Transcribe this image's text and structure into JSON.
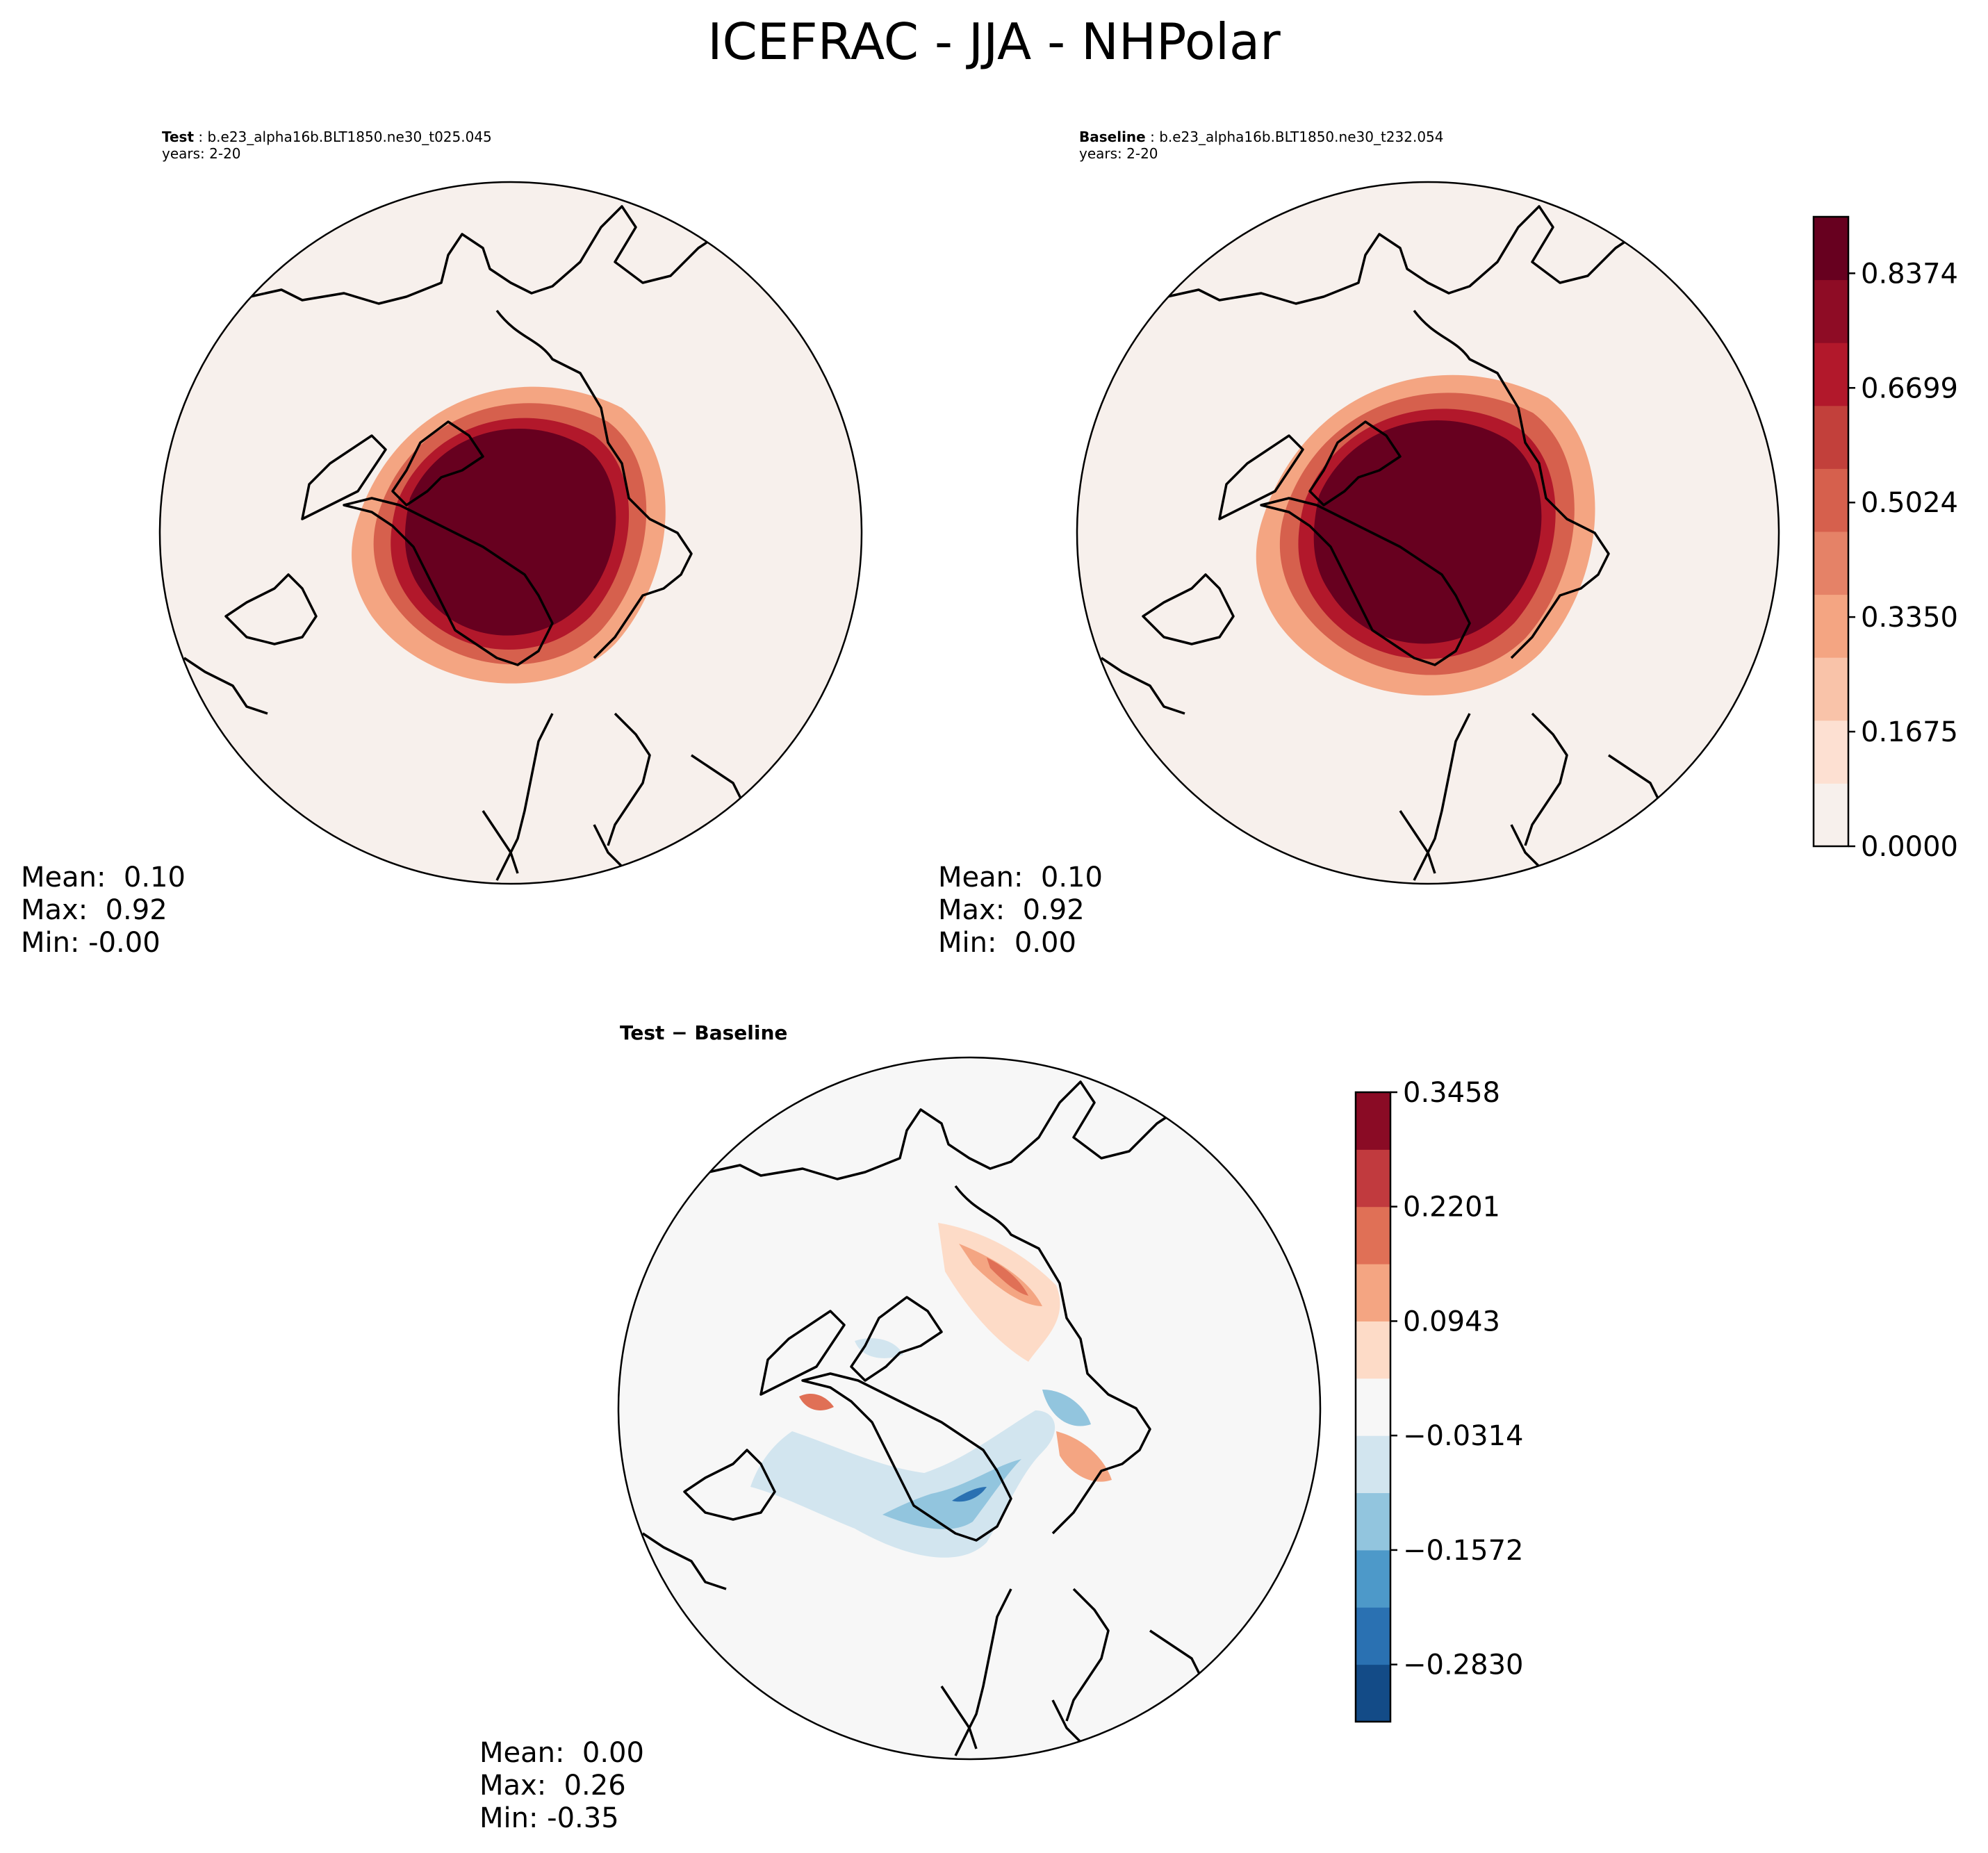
{
  "figure": {
    "title": "ICEFRAC - JJA - NHPolar"
  },
  "panels": {
    "test": {
      "label": "Test",
      "case": "b.e23_alpha16b.BLT1850.ne30_t025.045",
      "years": "years: 2-20",
      "stats": {
        "mean": "Mean:  0.10",
        "max": "Max:  0.92",
        "min": "Min: -0.00"
      }
    },
    "baseline": {
      "label": "Baseline",
      "case": "b.e23_alpha16b.BLT1850.ne30_t232.054",
      "years": "years: 2-20",
      "stats": {
        "mean": "Mean:  0.10",
        "max": "Max:  0.92",
        "min": "Min:  0.00"
      }
    },
    "diff": {
      "title": "Test − Baseline",
      "stats": {
        "mean": "Mean:  0.00",
        "max": "Max:  0.26",
        "min": "Min: -0.35"
      }
    }
  },
  "chart_data": [
    {
      "type": "heatmap",
      "panel": "Test",
      "projection": "North Polar Stereographic",
      "variable": "ICEFRAC",
      "season": "JJA",
      "stats": {
        "mean": 0.1,
        "max": 0.92,
        "min": -0.0
      }
    },
    {
      "type": "heatmap",
      "panel": "Baseline",
      "projection": "North Polar Stereographic",
      "variable": "ICEFRAC",
      "season": "JJA",
      "stats": {
        "mean": 0.1,
        "max": 0.92,
        "min": 0.0
      },
      "colorbar": {
        "colormap": "Reds",
        "ticks": [
          0.0,
          0.1675,
          0.335,
          0.5024,
          0.6699,
          0.8374
        ],
        "tick_labels": [
          "0.0000",
          "0.1675",
          "0.3350",
          "0.5024",
          "0.6699",
          "0.8374"
        ],
        "range": [
          0.0,
          0.92
        ],
        "colors": [
          "#f7f0ec",
          "#fde0d2",
          "#f9c3a9",
          "#f4a582",
          "#e58267",
          "#d6604d",
          "#c2403b",
          "#b2182b",
          "#8e0c25",
          "#67001f"
        ]
      }
    },
    {
      "type": "heatmap",
      "panel": "Test - Baseline",
      "projection": "North Polar Stereographic",
      "variable": "ICEFRAC difference",
      "season": "JJA",
      "stats": {
        "mean": 0.0,
        "max": 0.26,
        "min": -0.35
      },
      "colorbar": {
        "colormap": "RdBu_r",
        "ticks": [
          -0.283,
          -0.1572,
          -0.0314,
          0.0943,
          0.2201,
          0.3458
        ],
        "tick_labels": [
          "−0.2830",
          "−0.1572",
          "−0.0314",
          "0.0943",
          "0.2201",
          "0.3458"
        ],
        "range": [
          -0.3458,
          0.3458
        ],
        "colors": [
          "#134b87",
          "#2a71b2",
          "#4d99c9",
          "#92c5de",
          "#d2e5ef",
          "#f7f7f7",
          "#fddbc7",
          "#f4a582",
          "#e07056",
          "#c13a3e",
          "#8a0b25"
        ]
      }
    }
  ]
}
